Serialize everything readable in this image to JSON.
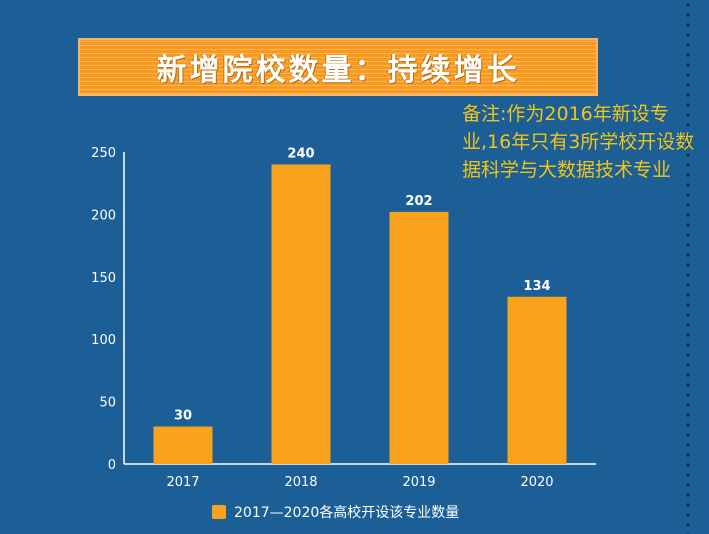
{
  "title": "新增院校数量：持续增长",
  "note": "备注:作为2016年新设专业,16年只有3所学校开设数据科学与大数据技术专业",
  "colors": {
    "background": "#1c5f97",
    "bar": "#f9a21b",
    "banner": "#f79a1e",
    "note": "#f0c419",
    "text": "#ffffff"
  },
  "chart_data": {
    "type": "bar",
    "title": "新增院校数量：持续增长",
    "categories": [
      "2017",
      "2018",
      "2019",
      "2020"
    ],
    "series": [
      {
        "name": "2017—2020各高校开设该专业数量",
        "values": [
          30,
          240,
          202,
          134
        ]
      }
    ],
    "yticks": [
      0,
      50,
      100,
      150,
      200,
      250
    ],
    "ylim": [
      0,
      250
    ],
    "xlabel": "",
    "ylabel": "",
    "legend": "bottom-center",
    "grid": false
  }
}
